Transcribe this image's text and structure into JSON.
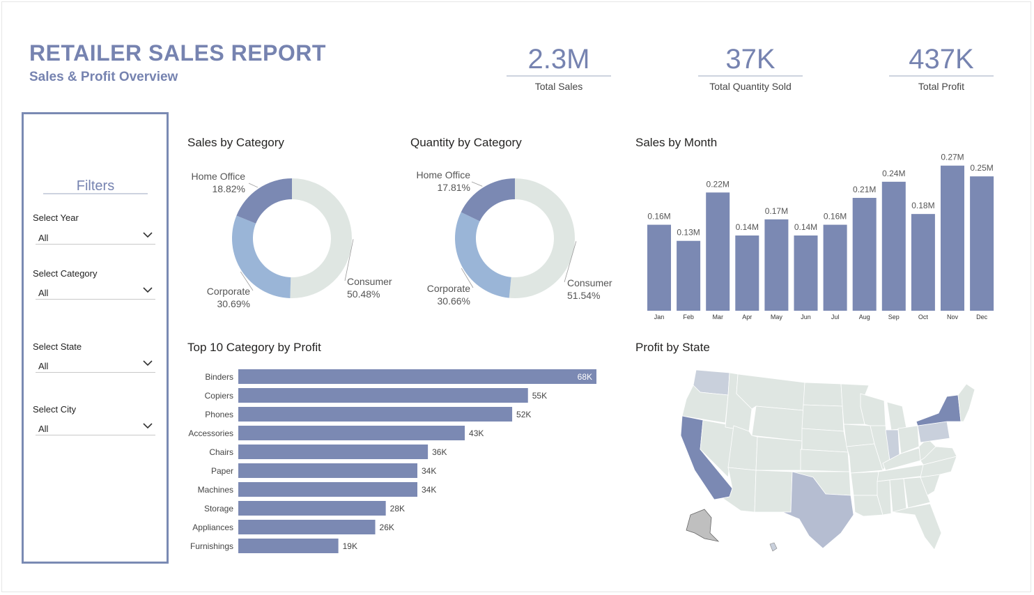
{
  "header": {
    "title": "RETAILER SALES REPORT",
    "subtitle": "Sales & Profit Overview"
  },
  "kpis": [
    {
      "value": "2.3M",
      "label": "Total Sales"
    },
    {
      "value": "37K",
      "label": "Total Quantity Sold"
    },
    {
      "value": "437K",
      "label": "Total Profit"
    }
  ],
  "filters": {
    "title": "Filters",
    "slicers": [
      {
        "label": "Select Year",
        "value": "All"
      },
      {
        "label": "Select Category",
        "value": "All"
      },
      {
        "label": "Select State",
        "value": "All"
      },
      {
        "label": "Select City",
        "value": "All"
      }
    ]
  },
  "colors": {
    "accent": "#7683b0",
    "bar": "#7b89b3",
    "consumer": "#dfe6e2",
    "corporate": "#9ab5d7",
    "home_office": "#7b89b3"
  },
  "chart_data": [
    {
      "id": "sales_by_category",
      "type": "pie",
      "title": "Sales by Category",
      "labels": [
        "Consumer",
        "Corporate",
        "Home Office"
      ],
      "values": [
        50.48,
        30.69,
        18.82
      ],
      "data_labels": [
        "50.48%",
        "30.69%",
        "18.82%"
      ]
    },
    {
      "id": "quantity_by_category",
      "type": "pie",
      "title": "Quantity by Category",
      "labels": [
        "Consumer",
        "Corporate",
        "Home Office"
      ],
      "values": [
        51.54,
        30.66,
        17.81
      ],
      "data_labels": [
        "51.54%",
        "30.66%",
        "17.81%"
      ]
    },
    {
      "id": "sales_by_month",
      "type": "bar",
      "title": "Sales by Month",
      "categories": [
        "Jan",
        "Feb",
        "Mar",
        "Apr",
        "May",
        "Jun",
        "Jul",
        "Aug",
        "Sep",
        "Oct",
        "Nov",
        "Dec"
      ],
      "values": [
        0.16,
        0.13,
        0.22,
        0.14,
        0.17,
        0.14,
        0.16,
        0.21,
        0.24,
        0.18,
        0.27,
        0.25
      ],
      "data_labels": [
        "0.16M",
        "0.13M",
        "0.22M",
        "0.14M",
        "0.17M",
        "0.14M",
        "0.16M",
        "0.21M",
        "0.24M",
        "0.18M",
        "0.27M",
        "0.25M"
      ],
      "ylim": [
        0,
        0.28
      ]
    },
    {
      "id": "top10_category_by_profit",
      "type": "bar",
      "orientation": "horizontal",
      "title": "Top 10 Category by Profit",
      "categories": [
        "Binders",
        "Copiers",
        "Phones",
        "Accessories",
        "Chairs",
        "Paper",
        "Machines",
        "Storage",
        "Appliances",
        "Furnishings"
      ],
      "values": [
        68,
        55,
        52,
        43,
        36,
        34,
        34,
        28,
        26,
        19
      ],
      "data_labels": [
        "68K",
        "55K",
        "52K",
        "43K",
        "36K",
        "34K",
        "34K",
        "28K",
        "26K",
        "19K"
      ],
      "xlim": [
        0,
        68
      ]
    },
    {
      "id": "profit_by_state",
      "type": "map",
      "title": "Profit by State",
      "highlighted_states": [
        "California",
        "New York",
        "Texas",
        "Washington"
      ]
    }
  ]
}
